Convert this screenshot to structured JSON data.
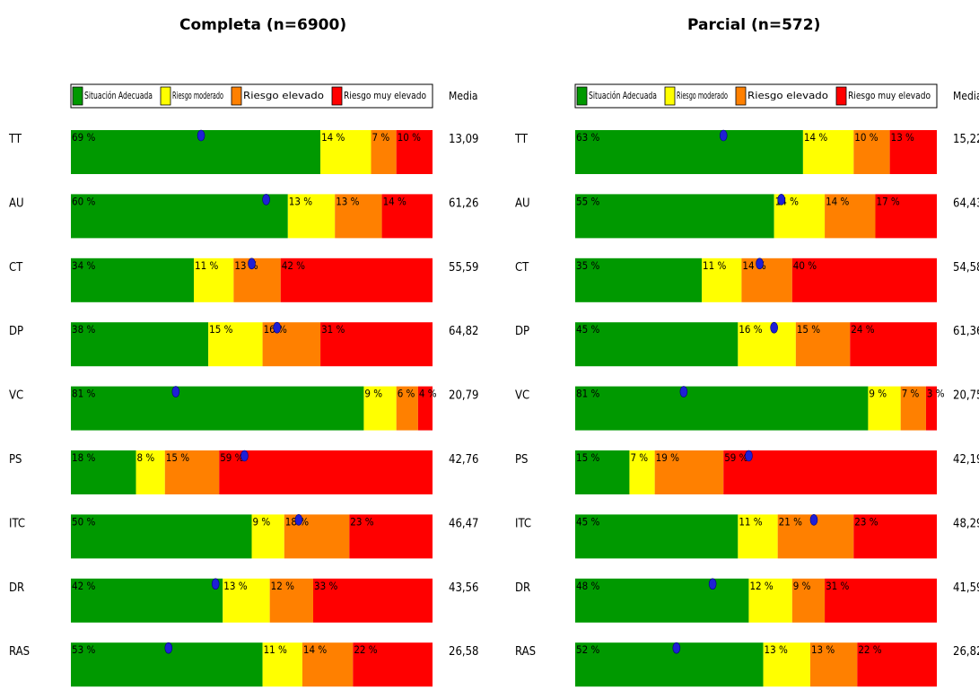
{
  "chart_data": [
    {
      "type": "bar",
      "stacked": true,
      "orientation": "horizontal",
      "title": "Completa (n=6900)",
      "legend": [
        "Situación Adecuada",
        "Riesgo moderado",
        "Riesgo elevado",
        "Riesgo muy elevado"
      ],
      "legend_placement": "top",
      "mean_header": "Media",
      "categories": [
        "TT",
        "AU",
        "CT",
        "DP",
        "VC",
        "PS",
        "ITC",
        "DR",
        "RAS"
      ],
      "series": [
        {
          "name": "Situación Adecuada",
          "color": "#009900",
          "values": [
            69,
            60,
            34,
            38,
            81,
            18,
            50,
            42,
            53
          ]
        },
        {
          "name": "Riesgo moderado",
          "color": "#ffff00",
          "values": [
            14,
            13,
            11,
            15,
            9,
            8,
            9,
            13,
            11
          ]
        },
        {
          "name": "Riesgo elevado",
          "color": "#ff8000",
          "values": [
            7,
            13,
            13,
            16,
            6,
            15,
            18,
            12,
            14
          ]
        },
        {
          "name": "Riesgo muy elevado",
          "color": "#ff0000",
          "values": [
            10,
            14,
            42,
            31,
            4,
            59,
            23,
            33,
            22
          ]
        }
      ],
      "means": [
        "13,09",
        "61,26",
        "55,59",
        "64,82",
        "20,79",
        "42,76",
        "46,47",
        "43,56",
        "26,58"
      ],
      "mean_marker_fraction": [
        0.36,
        0.54,
        0.5,
        0.57,
        0.29,
        0.48,
        0.63,
        0.4,
        0.27
      ]
    },
    {
      "type": "bar",
      "stacked": true,
      "orientation": "horizontal",
      "title": "Parcial (n=572)",
      "legend": [
        "Situación Adecuada",
        "Riesgo moderado",
        "Riesgo elevado",
        "Riesgo muy elevado"
      ],
      "legend_placement": "top",
      "mean_header": "Media",
      "categories": [
        "TT",
        "AU",
        "CT",
        "DP",
        "VC",
        "PS",
        "ITC",
        "DR",
        "RAS"
      ],
      "series": [
        {
          "name": "Situación Adecuada",
          "color": "#009900",
          "values": [
            63,
            55,
            35,
            45,
            81,
            15,
            45,
            48,
            52
          ]
        },
        {
          "name": "Riesgo moderado",
          "color": "#ffff00",
          "values": [
            14,
            14,
            11,
            16,
            9,
            7,
            11,
            12,
            13
          ]
        },
        {
          "name": "Riesgo elevado",
          "color": "#ff8000",
          "values": [
            10,
            14,
            14,
            15,
            7,
            19,
            21,
            9,
            13
          ]
        },
        {
          "name": "Riesgo muy elevado",
          "color": "#ff0000",
          "values": [
            13,
            17,
            40,
            24,
            3,
            59,
            23,
            31,
            22
          ]
        }
      ],
      "means": [
        "15,22",
        "64,43",
        "54,58",
        "61,36",
        "20,75",
        "42,19",
        "48,29",
        "41,59",
        "26,82"
      ],
      "mean_marker_fraction": [
        0.41,
        0.57,
        0.51,
        0.55,
        0.3,
        0.48,
        0.66,
        0.38,
        0.28
      ]
    }
  ]
}
